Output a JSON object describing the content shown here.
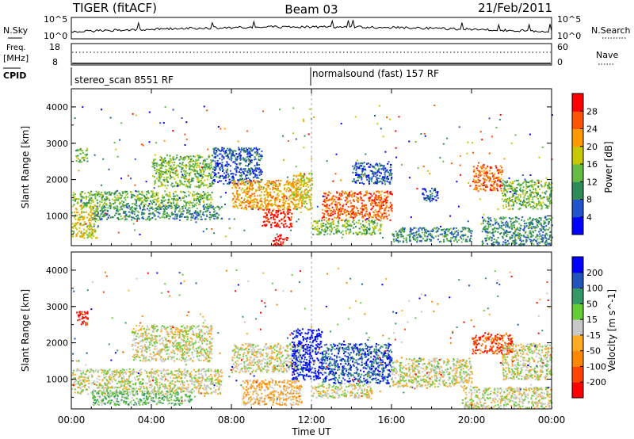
{
  "header": {
    "title": "TIGER (fitACF)",
    "beam": "Beam 03",
    "date": "21/Feb/2011"
  },
  "status_panels": {
    "nsky_label": "N.Sky",
    "nsearch_label": "N.Search",
    "freq_label_line1": "Freq.",
    "freq_label_line2": "[MHz]",
    "nave_label": "Nave",
    "cpid_label": "CPID",
    "nsky_ticks": [
      "10^5",
      "10^0"
    ],
    "nsearch_ticks": [
      "10^5",
      "10^0"
    ],
    "freq_ticks": [
      "18",
      "8"
    ],
    "nave_ticks": [
      "60",
      "0"
    ],
    "cpid_segments": [
      {
        "label": "stereo_scan 8551 RF",
        "start_hour": 0,
        "end_hour": 12
      },
      {
        "label": "normalsound (fast) 157 RF",
        "start_hour": 12,
        "end_hour": 24
      }
    ]
  },
  "chart_data": [
    {
      "type": "heatmap",
      "name": "power",
      "xlabel": "",
      "ylabel": "Slant Range [km]",
      "x_range": [
        0,
        24
      ],
      "ylim": [
        180,
        4500
      ],
      "yticks": [
        1000,
        2000,
        3000,
        4000
      ],
      "colorbar": {
        "label": "Power [dB]",
        "ticks": [
          "28",
          "24",
          "20",
          "16",
          "12",
          "8",
          "4"
        ],
        "colors": [
          "#0000ff",
          "#2255cc",
          "#2e8b57",
          "#66bb44",
          "#c8c800",
          "#ff9900",
          "#ff5500",
          "#ff0000"
        ]
      },
      "echo_regions": [
        {
          "x0": 0.0,
          "x1": 1.3,
          "y0": 400,
          "y1": 1300,
          "level": 4
        },
        {
          "x0": 0.0,
          "x1": 7.0,
          "y0": 1300,
          "y1": 1700,
          "level": 3
        },
        {
          "x0": 1.0,
          "x1": 7.5,
          "y0": 900,
          "y1": 1300,
          "level": 2
        },
        {
          "x0": 0.2,
          "x1": 0.8,
          "y0": 2500,
          "y1": 2900,
          "level": 3
        },
        {
          "x0": 4.0,
          "x1": 7.0,
          "y0": 1800,
          "y1": 2700,
          "level": 3
        },
        {
          "x0": 7.0,
          "x1": 9.5,
          "y0": 1900,
          "y1": 2900,
          "level": 1
        },
        {
          "x0": 8.0,
          "x1": 11.5,
          "y0": 1200,
          "y1": 2000,
          "level": 5
        },
        {
          "x0": 9.5,
          "x1": 11.0,
          "y0": 700,
          "y1": 1200,
          "level": 7
        },
        {
          "x0": 10.0,
          "x1": 10.8,
          "y0": 200,
          "y1": 500,
          "level": 7
        },
        {
          "x0": 11.0,
          "x1": 12.0,
          "y0": 1200,
          "y1": 2200,
          "level": 4
        },
        {
          "x0": 12.5,
          "x1": 16.0,
          "y0": 900,
          "y1": 1700,
          "level": 6
        },
        {
          "x0": 12.0,
          "x1": 15.5,
          "y0": 500,
          "y1": 900,
          "level": 3
        },
        {
          "x0": 14.0,
          "x1": 16.0,
          "y0": 1900,
          "y1": 2500,
          "level": 1
        },
        {
          "x0": 17.5,
          "x1": 18.3,
          "y0": 1400,
          "y1": 1800,
          "level": 1
        },
        {
          "x0": 16.0,
          "x1": 20.0,
          "y0": 300,
          "y1": 700,
          "level": 2
        },
        {
          "x0": 20.0,
          "x1": 21.5,
          "y0": 1700,
          "y1": 2400,
          "level": 6
        },
        {
          "x0": 21.5,
          "x1": 24.0,
          "y0": 1200,
          "y1": 2000,
          "level": 3
        },
        {
          "x0": 20.5,
          "x1": 24.0,
          "y0": 200,
          "y1": 1000,
          "level": 2
        }
      ]
    },
    {
      "type": "heatmap",
      "name": "velocity",
      "xlabel": "Time UT",
      "ylabel": "Slant Range [km]",
      "x_range": [
        0,
        24
      ],
      "xticks": [
        "00:00",
        "04:00",
        "08:00",
        "12:00",
        "16:00",
        "20:00",
        "00:00"
      ],
      "ylim": [
        180,
        4500
      ],
      "yticks": [
        1000,
        2000,
        3000,
        4000
      ],
      "colorbar": {
        "label": "Velocity [m s^-1]",
        "ticks": [
          "200",
          "100",
          "50",
          "15",
          "-15",
          "-50",
          "-100",
          "-200"
        ],
        "colors": [
          "#ff0000",
          "#ff4400",
          "#ff8800",
          "#ffaa22",
          "#c8c8c8",
          "#66cc33",
          "#339966",
          "#2255bb",
          "#0000ff"
        ]
      },
      "echo_regions": [
        {
          "x0": 0.0,
          "x1": 7.5,
          "y0": 600,
          "y1": 1300,
          "level": 4
        },
        {
          "x0": 0.2,
          "x1": 0.8,
          "y0": 2500,
          "y1": 2900,
          "level": 0
        },
        {
          "x0": 3.0,
          "x1": 7.0,
          "y0": 1500,
          "y1": 2500,
          "level": 4
        },
        {
          "x0": 1.0,
          "x1": 6.0,
          "y0": 300,
          "y1": 700,
          "level": 5
        },
        {
          "x0": 8.0,
          "x1": 11.5,
          "y0": 1200,
          "y1": 2000,
          "level": 4
        },
        {
          "x0": 8.5,
          "x1": 11.5,
          "y0": 300,
          "y1": 1000,
          "level": 3
        },
        {
          "x0": 11.0,
          "x1": 12.5,
          "y0": 1000,
          "y1": 2400,
          "level": 8
        },
        {
          "x0": 12.5,
          "x1": 16.0,
          "y0": 900,
          "y1": 2000,
          "level": 7
        },
        {
          "x0": 12.0,
          "x1": 15.0,
          "y0": 500,
          "y1": 900,
          "level": 4
        },
        {
          "x0": 16.0,
          "x1": 20.0,
          "y0": 800,
          "y1": 1600,
          "level": 4
        },
        {
          "x0": 20.0,
          "x1": 22.0,
          "y0": 1700,
          "y1": 2300,
          "level": 1
        },
        {
          "x0": 21.5,
          "x1": 24.0,
          "y0": 1000,
          "y1": 2000,
          "level": 4
        },
        {
          "x0": 19.5,
          "x1": 24.0,
          "y0": 200,
          "y1": 800,
          "level": 4
        }
      ]
    }
  ]
}
